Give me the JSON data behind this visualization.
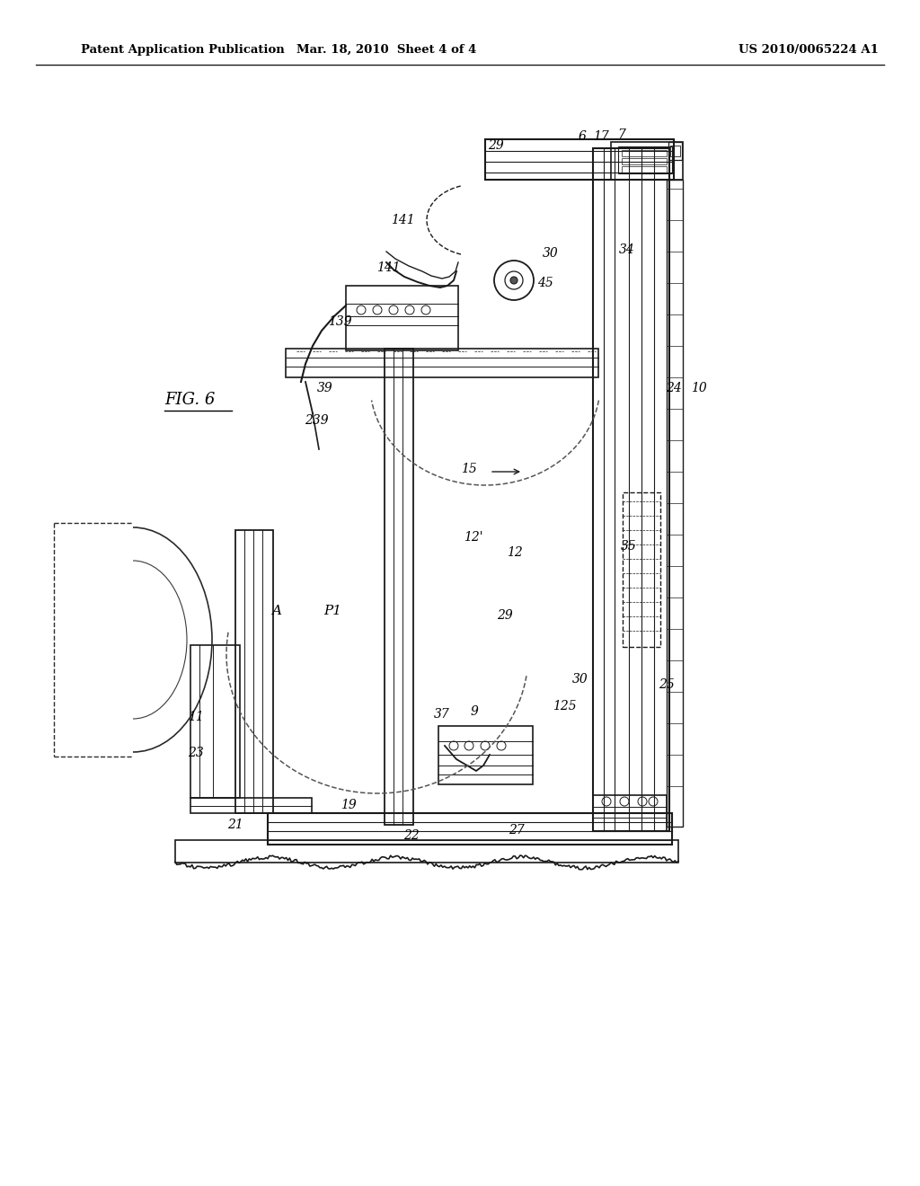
{
  "title_left": "Patent Application Publication",
  "title_mid": "Mar. 18, 2010  Sheet 4 of 4",
  "title_right": "US 2010/0065224 A1",
  "fig_label": "FIG. 6",
  "background": "#ffffff",
  "line_color": "#1a1a1a"
}
